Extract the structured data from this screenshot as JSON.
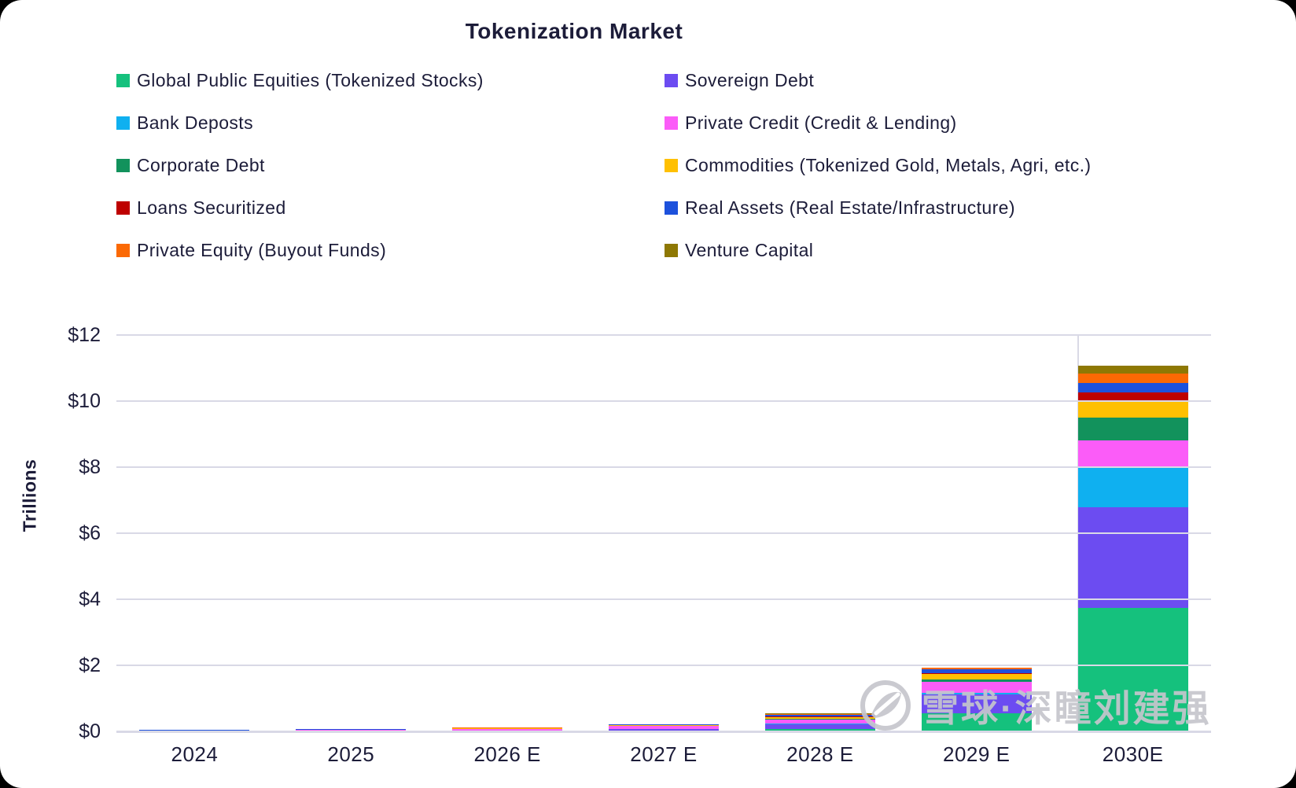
{
  "title": "Tokenization Market",
  "y_axis_title": "Trillions",
  "watermark": {
    "icon": "xueqiu-logo",
    "text": "雪球·深瞳刘建强"
  },
  "colors": {
    "grid": "#d9d9e6",
    "text": "#1c1c39",
    "watermark": "#c6c6cc"
  },
  "chart_data": {
    "type": "bar",
    "stacked": true,
    "title": "Tokenization Market",
    "xlabel": "",
    "ylabel": "Trillions",
    "ylim": [
      0,
      12
    ],
    "yticks": [
      "$0",
      "$2",
      "$4",
      "$6",
      "$8",
      "$10",
      "$12"
    ],
    "grid": true,
    "legend_position": "top",
    "categories": [
      "2024",
      "2025",
      "2026 E",
      "2027 E",
      "2028 E",
      "2029 E",
      "2030E"
    ],
    "series": [
      {
        "name": "Global Public Equities (Tokenized Stocks)",
        "color": "#15C17D",
        "values": [
          0.003,
          0.005,
          0.01,
          0.02,
          0.07,
          0.55,
          3.75
        ]
      },
      {
        "name": "Sovereign Debt",
        "color": "#6C4CF1",
        "values": [
          0.005,
          0.01,
          0.02,
          0.05,
          0.14,
          0.57,
          3.03
        ]
      },
      {
        "name": "Bank Deposts",
        "color": "#0FB0F0",
        "values": [
          0.001,
          0.002,
          0.003,
          0.005,
          0.02,
          0.04,
          1.24
        ]
      },
      {
        "name": "Private Credit (Credit & Lending)",
        "color": "#FB5CF8",
        "values": [
          0.008,
          0.02,
          0.04,
          0.09,
          0.12,
          0.33,
          0.8
        ]
      },
      {
        "name": "Corporate Debt",
        "color": "#12925C",
        "values": [
          0.003,
          0.004,
          0.005,
          0.01,
          0.03,
          0.08,
          0.69
        ]
      },
      {
        "name": "Commodities (Tokenized Gold, Metals, Agri, etc.)",
        "color": "#FFC002",
        "values": [
          0.014,
          0.018,
          0.012,
          0.02,
          0.06,
          0.17,
          0.46
        ]
      },
      {
        "name": "Loans Securitized",
        "color": "#BE0100",
        "values": [
          0.002,
          0.002,
          0.003,
          0.005,
          0.01,
          0.02,
          0.3
        ]
      },
      {
        "name": "Real Assets (Real Estate/Infrastructure)",
        "color": "#1D51DC",
        "values": [
          0.004,
          0.005,
          0.007,
          0.01,
          0.05,
          0.12,
          0.28
        ]
      },
      {
        "name": "Private Equity (Buyout Funds)",
        "color": "#FB6904",
        "values": [
          0.011,
          0.014,
          0.01,
          0.01,
          0.03,
          0.04,
          0.28
        ]
      },
      {
        "name": "Venture Capital",
        "color": "#8E7804",
        "values": [
          0.004,
          0.005,
          0.005,
          0.005,
          0.02,
          0.02,
          0.24
        ]
      }
    ]
  }
}
